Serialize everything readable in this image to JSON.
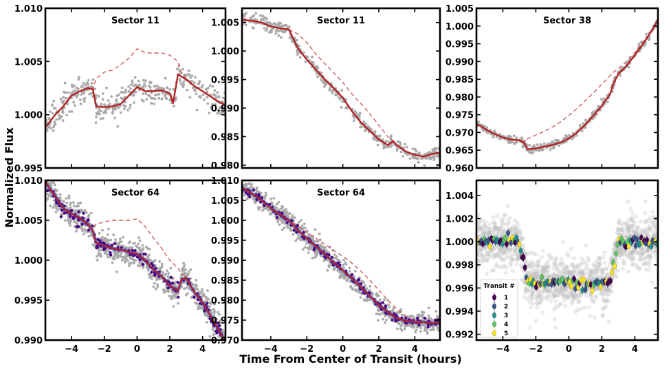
{
  "figure": {
    "xlabel": "Time From Center of Transit (hours)",
    "ylabel": "Normalized Flux"
  },
  "chart_data": [
    {
      "type": "scatter",
      "title": "Sector 11",
      "xlim": [
        -5.6,
        5.4
      ],
      "ylim": [
        0.995,
        1.01
      ],
      "xticks": [
        -4,
        -2,
        0,
        2,
        4
      ],
      "yticks": [
        0.995,
        1.0,
        1.005,
        1.01
      ],
      "ytick_labels": [
        "0.995",
        "1.000",
        "1.005",
        "1.010"
      ],
      "show_xtick_labels": false,
      "model": {
        "x": [
          -5.6,
          -5,
          -4.5,
          -4,
          -3.5,
          -3,
          -2.7,
          -2.5,
          -2,
          -1.5,
          -1,
          -0.5,
          0,
          0.5,
          1,
          1.5,
          2,
          2.2,
          2.5,
          2.7,
          3,
          3.5,
          4,
          4.5,
          5,
          5.4
        ],
        "y": [
          0.9988,
          1.0,
          1.0008,
          1.0018,
          1.0022,
          1.0025,
          1.0024,
          1.0008,
          1.0007,
          1.0008,
          1.001,
          1.0018,
          1.0026,
          1.0022,
          1.0022,
          1.0023,
          1.002,
          1.0011,
          1.0038,
          1.0036,
          1.0033,
          1.0027,
          1.0022,
          1.0017,
          1.0012,
          1.0009
        ]
      },
      "reference": {
        "x": [
          -5.6,
          -5,
          -4.5,
          -4,
          -3.5,
          -3,
          -2.7,
          -2.5,
          -2,
          -1.5,
          -1,
          -0.5,
          0,
          0.3,
          0.5,
          1,
          1.5,
          2,
          2.5,
          2.7,
          3,
          3.5,
          4,
          4.5,
          5,
          5.4
        ],
        "y": [
          0.9988,
          1.0,
          1.0008,
          1.0018,
          1.0022,
          1.0025,
          1.0025,
          1.0034,
          1.004,
          1.0042,
          1.0047,
          1.0053,
          1.0062,
          1.006,
          1.0058,
          1.0058,
          1.0058,
          1.0056,
          1.005,
          1.004,
          1.0034,
          1.0027,
          1.0022,
          1.0017,
          1.0012,
          1.0009
        ]
      },
      "scatter_sigma": 0.0006,
      "scatter_n": 420
    },
    {
      "type": "scatter",
      "title": "Sector 11",
      "xlim": [
        -5.6,
        5.4
      ],
      "ylim": [
        0.9795,
        1.0075
      ],
      "xticks": [
        -4,
        -2,
        0,
        2,
        4
      ],
      "yticks": [
        0.98,
        0.985,
        0.99,
        0.995,
        1.0,
        1.005
      ],
      "ytick_labels": [
        "0.980",
        "0.985",
        "0.990",
        "0.995",
        "1.000",
        "1.005"
      ],
      "show_xtick_labels": false,
      "model": {
        "x": [
          -5.6,
          -5,
          -4.5,
          -4,
          -3.5,
          -3,
          -2.5,
          -2,
          -1.5,
          -1,
          -0.5,
          0,
          0.5,
          1,
          1.5,
          2,
          2.5,
          2.8,
          3,
          3.5,
          4,
          4.5,
          5,
          5.4
        ],
        "y": [
          1.0055,
          1.0053,
          1.005,
          1.0043,
          1.004,
          1.0038,
          1.0005,
          0.9985,
          0.9968,
          0.995,
          0.9935,
          0.9918,
          0.9895,
          0.9875,
          0.986,
          0.9845,
          0.9835,
          0.9842,
          0.9835,
          0.9824,
          0.9818,
          0.9815,
          0.982,
          0.9822
        ]
      },
      "reference": {
        "x": [
          -5.6,
          -5,
          -4.5,
          -4,
          -3.5,
          -3,
          -2.5,
          -2,
          -1.5,
          -1,
          -0.5,
          0,
          0.5,
          1,
          1.5,
          2,
          2.5,
          2.8,
          3,
          3.5,
          4,
          4.5,
          5,
          5.4
        ],
        "y": [
          1.0055,
          1.0053,
          1.005,
          1.0043,
          1.004,
          1.0038,
          1.003,
          1.0015,
          0.9995,
          0.9978,
          0.9962,
          0.9945,
          0.9925,
          0.9908,
          0.989,
          0.987,
          0.985,
          0.9843,
          0.9835,
          0.9824,
          0.9818,
          0.9815,
          0.982,
          0.9822
        ]
      },
      "scatter_sigma": 0.0006,
      "scatter_n": 420
    },
    {
      "type": "scatter",
      "title": "Sector 38",
      "xlim": [
        -5.6,
        5.4
      ],
      "ylim": [
        0.96,
        1.005
      ],
      "xticks": [
        -4,
        -2,
        0,
        2,
        4
      ],
      "yticks": [
        0.96,
        0.965,
        0.97,
        0.975,
        0.98,
        0.985,
        0.99,
        0.995,
        1.0,
        1.005
      ],
      "ytick_labels": [
        "0.960",
        "0.965",
        "0.970",
        "0.975",
        "0.980",
        "0.985",
        "0.990",
        "0.995",
        "1.000",
        "1.005"
      ],
      "show_xtick_labels": false,
      "model": {
        "x": [
          -5.6,
          -5,
          -4.5,
          -4,
          -3.5,
          -3,
          -2.7,
          -2.5,
          -2,
          -1.5,
          -1,
          -0.5,
          0,
          0.5,
          1,
          1.5,
          2,
          2.5,
          2.7,
          3,
          3.5,
          4,
          4.5,
          5,
          5.4
        ],
        "y": [
          0.9725,
          0.9708,
          0.9696,
          0.9686,
          0.968,
          0.9678,
          0.967,
          0.9653,
          0.9655,
          0.966,
          0.9665,
          0.9672,
          0.9683,
          0.97,
          0.9722,
          0.9748,
          0.9775,
          0.9808,
          0.9838,
          0.9865,
          0.9888,
          0.9918,
          0.995,
          0.9985,
          1.0018
        ]
      },
      "reference": {
        "x": [
          -5.6,
          -5,
          -4.5,
          -4,
          -3.5,
          -3,
          -2.7,
          -2.5,
          -2,
          -1.5,
          -1,
          -0.5,
          0,
          0.5,
          1,
          1.5,
          2,
          2.5,
          2.7,
          3,
          3.5,
          4,
          4.5,
          5,
          5.4
        ],
        "y": [
          0.9725,
          0.9708,
          0.9696,
          0.9686,
          0.968,
          0.9678,
          0.9675,
          0.9682,
          0.9693,
          0.9703,
          0.9715,
          0.973,
          0.9748,
          0.9768,
          0.979,
          0.9812,
          0.9836,
          0.986,
          0.987,
          0.988,
          0.99,
          0.9925,
          0.9955,
          0.9985,
          1.0018
        ]
      },
      "scatter_sigma": 0.0006,
      "scatter_n": 360
    },
    {
      "type": "scatter",
      "title": "Sector 64",
      "xlim": [
        -5.6,
        5.4
      ],
      "ylim": [
        0.99,
        1.01
      ],
      "xticks": [
        -4,
        -2,
        0,
        2,
        4
      ],
      "xtick_labels": [
        "−4",
        "−2",
        "0",
        "2",
        "4"
      ],
      "yticks": [
        0.99,
        0.995,
        1.0,
        1.005,
        1.01
      ],
      "ytick_labels": [
        "0.990",
        "0.995",
        "1.000",
        "1.005",
        "1.010"
      ],
      "show_xtick_labels": true,
      "model": {
        "x": [
          -5.6,
          -5,
          -4.5,
          -4,
          -3.5,
          -3,
          -2.7,
          -2.5,
          -2,
          -1.5,
          -1,
          -0.5,
          0,
          0.5,
          1,
          1.5,
          2,
          2.5,
          2.7,
          3,
          3.5,
          4,
          4.5,
          5,
          5.4
        ],
        "y": [
          1.0098,
          1.008,
          1.0065,
          1.0058,
          1.0053,
          1.0045,
          1.0037,
          1.0022,
          1.0018,
          1.0015,
          1.0013,
          1.001,
          1.0008,
          1.0,
          0.9988,
          0.998,
          0.9968,
          0.9962,
          0.9975,
          0.9978,
          0.996,
          0.9947,
          0.993,
          0.9912,
          0.9898
        ]
      },
      "reference": {
        "x": [
          -5.6,
          -5,
          -4.5,
          -4,
          -3.5,
          -3,
          -2.7,
          -2.5,
          -2,
          -1.5,
          -1,
          -0.5,
          0,
          0.5,
          1,
          1.5,
          2,
          2.5,
          2.7,
          3,
          3.5,
          4,
          4.5,
          5,
          5.4
        ],
        "y": [
          1.0098,
          1.008,
          1.0065,
          1.0058,
          1.0053,
          1.0045,
          1.004,
          1.0045,
          1.0048,
          1.005,
          1.005,
          1.005,
          1.0052,
          1.0042,
          1.0028,
          1.0015,
          1.0,
          0.999,
          0.9984,
          0.9978,
          0.996,
          0.9947,
          0.993,
          0.9912,
          0.9898
        ]
      },
      "scatter_sigma": 0.0009,
      "scatter_n": 900,
      "binned_n": 200
    },
    {
      "type": "scatter",
      "title": "Sector 64",
      "xlim": [
        -5.6,
        5.4
      ],
      "ylim": [
        0.97,
        1.01
      ],
      "xticks": [
        -4,
        -2,
        0,
        2,
        4
      ],
      "xtick_labels": [
        "−4",
        "−2",
        "0",
        "2",
        "4"
      ],
      "yticks": [
        0.97,
        0.975,
        0.98,
        0.985,
        0.99,
        0.995,
        1.0,
        1.005,
        1.01
      ],
      "ytick_labels": [
        "0.970",
        "0.975",
        "0.980",
        "0.985",
        "0.990",
        "0.995",
        "1.000",
        "1.005",
        "1.010"
      ],
      "show_xtick_labels": true,
      "model": {
        "x": [
          -5.6,
          -5,
          -4.5,
          -4,
          -3.5,
          -3,
          -2.5,
          -2,
          -1.5,
          -1,
          -0.5,
          0,
          0.5,
          1,
          1.5,
          2,
          2.5,
          3,
          3.5,
          4,
          4.5,
          5,
          5.4
        ],
        "y": [
          1.0082,
          1.0065,
          1.005,
          1.003,
          1.0015,
          1.0,
          0.9975,
          0.9955,
          0.9935,
          0.9915,
          0.9895,
          0.9875,
          0.9855,
          0.9833,
          0.981,
          0.9788,
          0.977,
          0.9755,
          0.9748,
          0.9745,
          0.9745,
          0.9742,
          0.9745
        ]
      },
      "reference": {
        "x": [
          -5.6,
          -5,
          -4.5,
          -4,
          -3.5,
          -3,
          -2.5,
          -2,
          -1.5,
          -1,
          -0.5,
          0,
          0.5,
          1,
          1.5,
          2,
          2.5,
          3,
          3.5,
          4,
          4.5,
          5,
          5.4
        ],
        "y": [
          1.0082,
          1.0065,
          1.005,
          1.003,
          1.0015,
          1.0,
          0.9987,
          0.997,
          0.9955,
          0.994,
          0.9925,
          0.991,
          0.9893,
          0.9873,
          0.985,
          0.9825,
          0.98,
          0.9778,
          0.976,
          0.9748,
          0.9745,
          0.9742,
          0.9745
        ]
      },
      "scatter_sigma": 0.0012,
      "scatter_n": 900,
      "binned_n": 200
    },
    {
      "type": "scatter",
      "xlim": [
        -5.6,
        5.4
      ],
      "ylim": [
        0.9915,
        1.0053
      ],
      "xticks": [
        -4,
        -2,
        0,
        2,
        4
      ],
      "xtick_labels": [
        "−4",
        "−2",
        "0",
        "2",
        "4"
      ],
      "yticks": [
        0.992,
        0.994,
        0.996,
        0.998,
        1.0,
        1.002,
        1.004
      ],
      "ytick_labels": [
        "0.992",
        "0.994",
        "0.996",
        "0.998",
        "1.000",
        "1.002",
        "1.004"
      ],
      "show_xtick_labels": true,
      "transit": {
        "depth": 0.0035,
        "t1": -3.0,
        "t2": -2.5,
        "t3": 2.5,
        "t4": 3.0,
        "bottom_slope": 0.0
      },
      "scatter_sigma": 0.0011,
      "scatter_n": 1400,
      "binned_sigma": 0.00022,
      "binned_step": 0.085,
      "legend": {
        "title": "Transit #",
        "placement": "lower-left",
        "entries": [
          {
            "label": "1",
            "color": "#440154"
          },
          {
            "label": "2",
            "color": "#3b528b"
          },
          {
            "label": "3",
            "color": "#21918c"
          },
          {
            "label": "4",
            "color": "#5ec962"
          },
          {
            "label": "5",
            "color": "#fde725"
          }
        ]
      }
    }
  ],
  "colors": {
    "raw": "#aaaaaa",
    "model": "#b22222",
    "reference": "#cd5c5c",
    "binned": "#4b0082",
    "binned_line": "#3355dd"
  }
}
